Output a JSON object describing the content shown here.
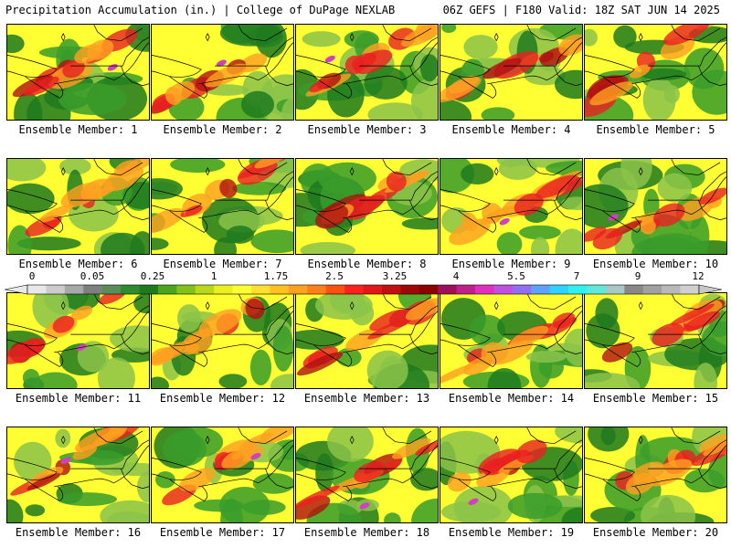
{
  "header": {
    "title": "Precipitation Accumulation (in.) | College of DuPage NEXLAB",
    "run_info": "06Z GEFS | F180 Valid: 18Z SAT JUN 14 2025"
  },
  "members": [
    {
      "label": "Ensemble Member: 1"
    },
    {
      "label": "Ensemble Member: 2"
    },
    {
      "label": "Ensemble Member: 3"
    },
    {
      "label": "Ensemble Member: 4"
    },
    {
      "label": "Ensemble Member: 5"
    },
    {
      "label": "Ensemble Member: 6"
    },
    {
      "label": "Ensemble Member: 7"
    },
    {
      "label": "Ensemble Member: 8"
    },
    {
      "label": "Ensemble Member: 9"
    },
    {
      "label": "Ensemble Member: 10"
    },
    {
      "label": "Ensemble Member: 11"
    },
    {
      "label": "Ensemble Member: 12"
    },
    {
      "label": "Ensemble Member: 13"
    },
    {
      "label": "Ensemble Member: 14"
    },
    {
      "label": "Ensemble Member: 15"
    },
    {
      "label": "Ensemble Member: 16"
    },
    {
      "label": "Ensemble Member: 17"
    },
    {
      "label": "Ensemble Member: 18"
    },
    {
      "label": "Ensemble Member: 19"
    },
    {
      "label": "Ensemble Member: 20"
    }
  ],
  "scale": {
    "labels": [
      "0",
      "0.05",
      "0.25",
      "1",
      "1.75",
      "2.5",
      "3.25",
      "4",
      "5.5",
      "7",
      "9",
      "12"
    ],
    "colors": [
      "#e8e8e8",
      "#cccccc",
      "#a8a8a8",
      "#7f7f7f",
      "#5a8c5a",
      "#2e8b2e",
      "#1f7a1f",
      "#4aa51c",
      "#7ec21a",
      "#b8d81a",
      "#e8f020",
      "#ffff33",
      "#ffe030",
      "#ffc020",
      "#ffa020",
      "#ff8018",
      "#ff5010",
      "#ff2020",
      "#e01818",
      "#c01010",
      "#a00808",
      "#8b0000",
      "#a0105a",
      "#c0208a",
      "#e030c0",
      "#c050e0",
      "#9070f0",
      "#60a0ff",
      "#30d0ff",
      "#30f0f0",
      "#60e8d8",
      "#a8c8c8",
      "#888888",
      "#a0a0a0",
      "#b8b8b8",
      "#d0d0d0"
    ]
  },
  "field_colors": {
    "dark_green": "#1f7a1f",
    "green": "#3a9c2a",
    "light_green": "#8bc34a",
    "yellow": "#ffff33",
    "orange": "#ffa020",
    "red": "#e82020",
    "dark_red": "#b01010",
    "magenta": "#d040c0"
  }
}
